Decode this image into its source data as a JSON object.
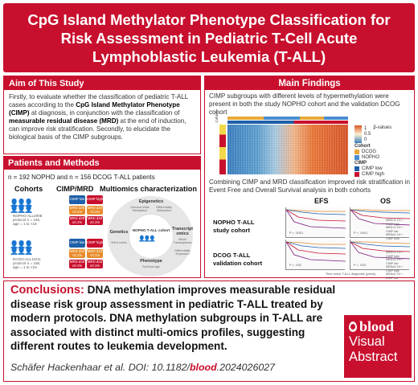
{
  "title": {
    "line1": "CpG Island Methylator Phenotype Classification for",
    "line2": "Risk Assessment in Pediatric T-Cell Acute",
    "line3": "Lymphoblastic Leukemia (T-ALL)"
  },
  "aim": {
    "heading": "Aim of This Study",
    "t1": "Firstly, to evaluate whether the classification of pediatric T-ALL cases according to the ",
    "b1": "CpG Island Methylator Phenotype (CIMP)",
    "t2": " at diagnosis, in conjunction with the classification of ",
    "b2": "measurable residual disease (MRD)",
    "t3": " at the end of induction, can improve risk stratification. Secondly, to elucidate the biological basis of the CIMP subgroups."
  },
  "methods": {
    "heading": "Patients and Methods",
    "counts": "n = 192 NOPHO and n = 156 DCOG T-ALL patients",
    "col_cohorts": "Cohorts",
    "col_cimp": "CIMP/MRD",
    "col_multi": "Multiomics characterization",
    "nopho_l1": "NOPHO ALL2008",
    "nopho_l2": "protocol n = 192,",
    "nopho_l3": "age = 1 to <18",
    "dcog_l1": "DCOG-ALL10/11",
    "dcog_l2": "protocol n = 156,",
    "dcog_l3": "age = 1 to <18",
    "cimp_low": "CIMP low",
    "cimp_high": "CIMP high",
    "mrd_lo": "MRD d29 <0.1%",
    "mrd_hi": "MRD d29 ≥0.1%",
    "mrd_lo_d": "MRD d33 <0.1%",
    "mrd_hi_d": "MRD d33 ≥0.1%",
    "omics_center": "NOPHO T-ALL cohort",
    "omics_epigenetics": "Epigenetics",
    "omics_epi_sub": "Genome-Wide Methylation",
    "omics_diff": "Differentially Methylated",
    "omics_genetics": "Genetics",
    "omics_gen_sub": "SNVs Indels",
    "omics_transcript": "Transcript omics",
    "omics_trans_sub": "Whole Transcriptome",
    "omics_diffexp": "Differentially Expressed",
    "omics_phenotype": "Phenotype",
    "omics_phen_sub": "EpiClock age"
  },
  "findings": {
    "heading": "Main Findings",
    "p1": "CIMP subgroups with different levels of hypermethylation were present in both the study NOPHO cohort and the validation DCOG cohort",
    "p2": "Combining CIMP and MRD classification improved risk stratification in Event Free and Overall Survival analysis in both cohorts",
    "legend_beta": "β-values",
    "legend_1": "1",
    "legend_05": "0.5",
    "legend_0": "0",
    "legend_cohort": "Cohort",
    "legend_dcog": "DCOG",
    "legend_nopho": "NOPHO",
    "legend_cimp": "CIMP",
    "legend_low": "CIMP low",
    "legend_high": "CIMP high",
    "heat_cohort": "Cohort",
    "heat_cimp": "CIMP",
    "efs": "EFS",
    "os": "OS",
    "nopho_row_l1": "NOPHO T-ALL",
    "nopho_row_l2": "study cohort",
    "dcog_row_l1": "DCOG T-ALL",
    "dcog_row_l2": "validation cohort",
    "p_efs_nopho": "P < .0001",
    "p_os_nopho": "P < .0001",
    "p_efs_dcog": "P = .002",
    "p_os_dcog": "P = .003",
    "km_leg1": "MRD<0.1% + CIMP high",
    "km_leg2": "MRD<0.1% + CIMP low",
    "km_leg3": "MRD≥0.1% + CIMP high",
    "km_leg4": "MRD≥0.1% + CIMP low",
    "x_axis": "Time since T-ALL diagnosis (years)"
  },
  "conclusions": {
    "lead": "Conclusions:",
    "text": " DNA methylation improves measurable residual disease risk group assessment in pediatric T-ALL treated by modern protocols. DNA methylation subgroups in T-ALL are associated with distinct multi-omics profiles, suggesting different routes to leukemia development.",
    "cite_pre": "Schäfer Hackenhaar et al. DOI: 10.1182/",
    "cite_blood": "blood",
    "cite_post": ".2024026027"
  },
  "badge": {
    "logo": "blood",
    "word1": "Visual",
    "word2": "Abstract"
  },
  "colors": {
    "brand_red": "#c8102e",
    "cimp_low": "#1f5fa8",
    "cimp_high": "#c8102e",
    "mrd_low": "#e98b2a",
    "mrd_high": "#c8102e"
  }
}
